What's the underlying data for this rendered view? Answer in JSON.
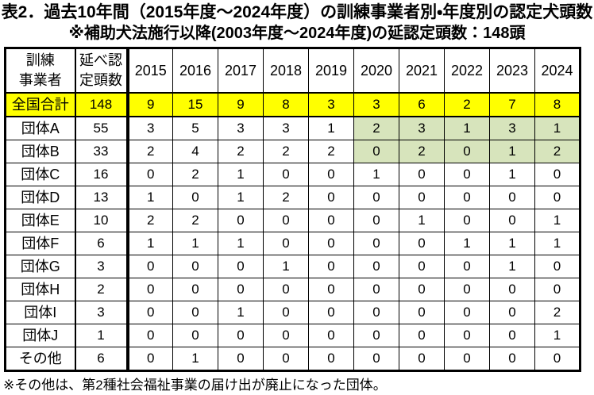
{
  "title": "表2．過去10年間（2015年度～2024年度）の訓練事業者別・年度別の認定犬頭数",
  "subtitle": "※補助犬法施行以降(2003年度～2024年度)の延認定頭数：148頭",
  "footnote": "※その他は、第2種社会福祉事業の届け出が廃止になった団体。",
  "colors": {
    "highlight_yellow": "#FFFF00",
    "highlight_green": "#D7E4BC",
    "border": "#000000",
    "background": "#FFFFFF"
  },
  "chart_data": {
    "type": "table",
    "header": {
      "col1_line1": "訓練",
      "col1_line2": "事業者",
      "col2_line1": "延べ認",
      "col2_line2": "定頭数",
      "years": [
        "2015",
        "2016",
        "2017",
        "2018",
        "2019",
        "2020",
        "2021",
        "2022",
        "2023",
        "2024"
      ]
    },
    "rows": [
      {
        "name": "全国合計",
        "total": 148,
        "values": [
          9,
          15,
          9,
          8,
          3,
          3,
          6,
          2,
          7,
          8
        ],
        "style": "yellow"
      },
      {
        "name": "団体A",
        "total": 55,
        "values": [
          3,
          5,
          3,
          3,
          1,
          2,
          3,
          1,
          3,
          1
        ],
        "green_cols": [
          5,
          9
        ]
      },
      {
        "name": "団体B",
        "total": 33,
        "values": [
          2,
          4,
          2,
          2,
          2,
          0,
          2,
          0,
          1,
          2
        ],
        "green_cols": [
          5,
          9
        ]
      },
      {
        "name": "団体C",
        "total": 16,
        "values": [
          0,
          2,
          1,
          0,
          0,
          1,
          0,
          0,
          1,
          0
        ]
      },
      {
        "name": "団体D",
        "total": 13,
        "values": [
          1,
          0,
          1,
          2,
          0,
          0,
          0,
          0,
          0,
          0
        ]
      },
      {
        "name": "団体E",
        "total": 10,
        "values": [
          2,
          2,
          0,
          0,
          0,
          0,
          1,
          0,
          0,
          1
        ]
      },
      {
        "name": "団体F",
        "total": 6,
        "values": [
          1,
          1,
          1,
          0,
          0,
          0,
          0,
          1,
          1,
          1
        ]
      },
      {
        "name": "団体G",
        "total": 3,
        "values": [
          0,
          0,
          0,
          1,
          0,
          0,
          0,
          0,
          1,
          0
        ]
      },
      {
        "name": "団体H",
        "total": 2,
        "values": [
          0,
          0,
          0,
          0,
          0,
          0,
          0,
          0,
          0,
          0
        ]
      },
      {
        "name": "団体I",
        "total": 3,
        "values": [
          0,
          0,
          1,
          0,
          0,
          0,
          0,
          0,
          0,
          2
        ]
      },
      {
        "name": "団体J",
        "total": 1,
        "values": [
          0,
          0,
          0,
          0,
          0,
          0,
          0,
          0,
          0,
          1
        ]
      },
      {
        "name": "その他",
        "total": 6,
        "values": [
          0,
          1,
          0,
          0,
          0,
          0,
          0,
          0,
          0,
          0
        ]
      }
    ]
  }
}
